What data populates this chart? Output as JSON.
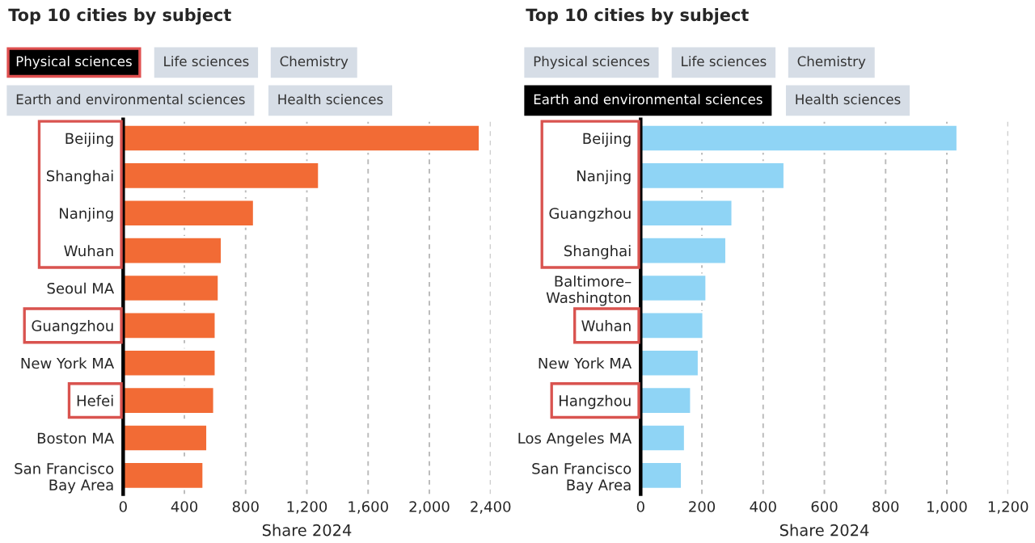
{
  "chart_data": [
    {
      "type": "bar",
      "orientation": "horizontal",
      "title": "Top 10 cities by subject",
      "xlabel": "Share 2024",
      "annotations": [
        "Physical sciences",
        "Life sciences",
        "Chemistry",
        "Earth and environmental sciences",
        "Health sciences"
      ],
      "categories": [
        "Beijing",
        "Shanghai",
        "Nanjing",
        "Wuhan",
        "Seoul MA",
        "Guangzhou",
        "New York MA",
        "Hefei",
        "Boston MA",
        "San Francisco\nBay Area"
      ],
      "values": [
        2330,
        1280,
        855,
        645,
        625,
        605,
        605,
        595,
        550,
        525
      ],
      "color": "#f26b35",
      "xlim": [
        0,
        2400
      ],
      "xticks": [
        0,
        400,
        800,
        {
          "value": 1200,
          "label": "1,200"
        },
        {
          "value": 1600,
          "label": "1,600"
        },
        {
          "value": 2000,
          "label": "2,000"
        },
        {
          "value": 2400,
          "label": "2,400"
        }
      ],
      "grid": "x"
    },
    {
      "type": "bar",
      "orientation": "horizontal",
      "title": "Top 10 cities by subject",
      "xlabel": "Share 2024",
      "annotations": [
        "Physical sciences",
        "Life sciences",
        "Chemistry",
        "Earth and environmental sciences",
        "Health sciences"
      ],
      "categories": [
        "Beijing",
        "Nanjing",
        "Guangzhou",
        "Shanghai",
        "Baltimore–\nWashington",
        "Wuhan",
        "New York MA",
        "Hangzhou",
        "Los Angeles MA",
        "San Francisco\nBay Area"
      ],
      "values": [
        1035,
        470,
        300,
        280,
        215,
        205,
        190,
        165,
        145,
        135
      ],
      "color": "#8fd4f5",
      "xlim": [
        0,
        1200
      ],
      "xticks": [
        0,
        200,
        400,
        600,
        800,
        {
          "value": 1000,
          "label": "1,000"
        },
        {
          "value": 1200,
          "label": "1,200"
        }
      ],
      "grid": "x"
    }
  ]
}
